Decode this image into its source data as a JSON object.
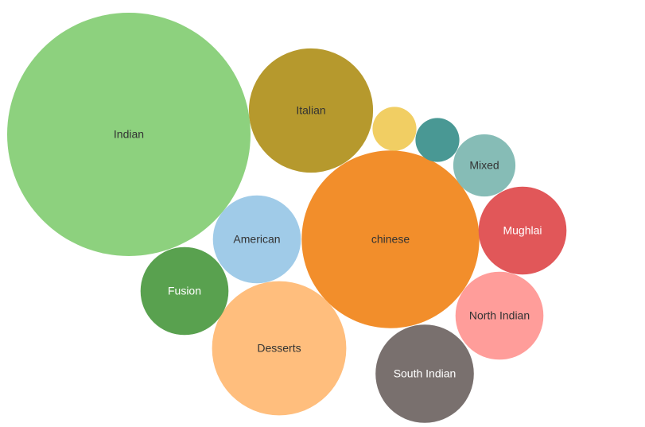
{
  "chart_data": {
    "type": "bubble",
    "title": "",
    "legend": "none",
    "series": [
      {
        "name": "Indian",
        "value": 92,
        "color": "#8dd17e",
        "label_color": "#333333"
      },
      {
        "name": "chinese",
        "value": 49,
        "color": "#f28e2b",
        "label_color": "#333333"
      },
      {
        "name": "Desserts",
        "value": 28,
        "color": "#ffbe7d",
        "label_color": "#333333"
      },
      {
        "name": "Italian",
        "value": 24,
        "color": "#b6992d",
        "label_color": "#333333"
      },
      {
        "name": "South Indian",
        "value": 15,
        "color": "#79706e",
        "label_color": "#ffffff"
      },
      {
        "name": "American",
        "value": 12,
        "color": "#a0cbe8",
        "label_color": "#333333"
      },
      {
        "name": "Fusion",
        "value": 12,
        "color": "#59a14f",
        "label_color": "#ffffff"
      },
      {
        "name": "Mughlai",
        "value": 12,
        "color": "#e15759",
        "label_color": "#ffffff"
      },
      {
        "name": "North Indian",
        "value": 12,
        "color": "#ff9d9a",
        "label_color": "#333333"
      },
      {
        "name": "Mixed",
        "value": 6,
        "color": "#86bcb6",
        "label_color": "#333333"
      },
      {
        "name": "",
        "value": 3,
        "color": "#f1ce63",
        "label_color": "#333333"
      },
      {
        "name": "",
        "value": 3,
        "color": "#499894",
        "label_color": "#ffffff"
      }
    ]
  }
}
